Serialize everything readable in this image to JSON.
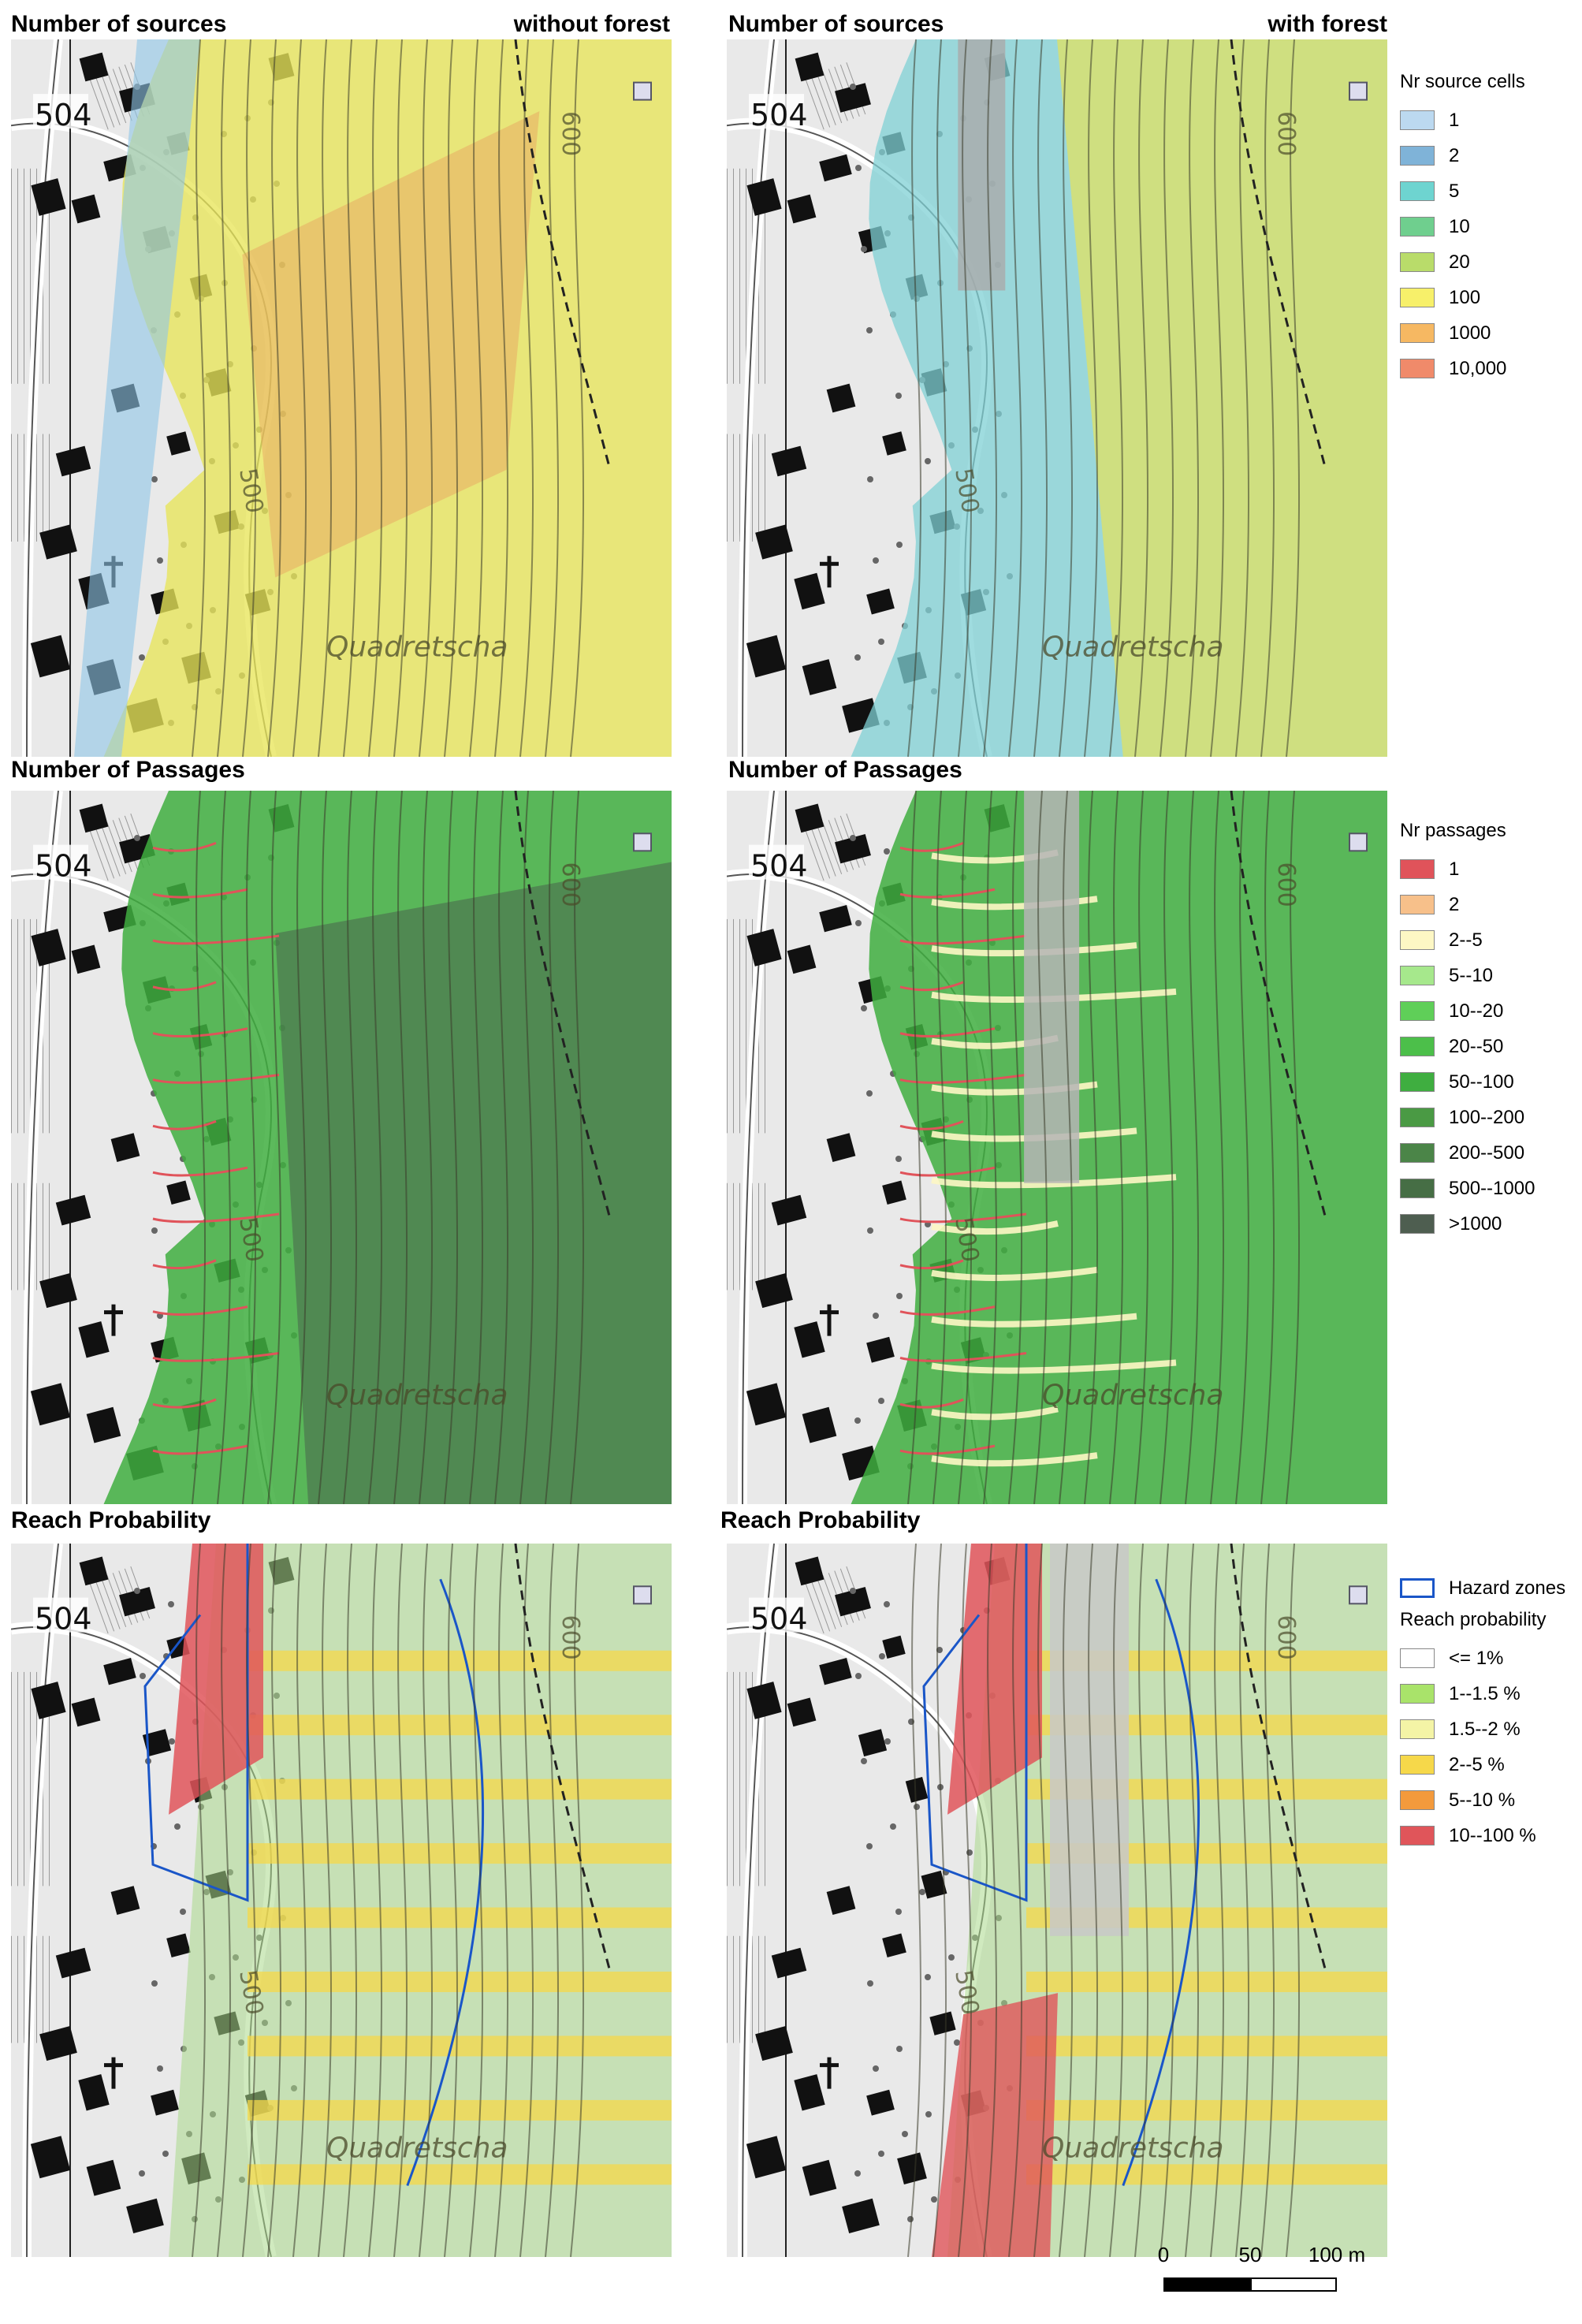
{
  "titles": {
    "row1_left": "Number of sources",
    "row1_left_sub": "without forest",
    "row1_right": "Number of sources",
    "row1_right_sub": "with forest",
    "row2_left": "Number of Passages",
    "row2_right": "Number of Passages",
    "row3_left": "Reach Probability",
    "row3_right": "Reach Probability"
  },
  "map_labels": {
    "elevation_504": "504",
    "contour_500": "500",
    "contour_600": "600",
    "place_name": "Quadretscha"
  },
  "legend_sources": {
    "title": "Nr source cells",
    "items": [
      {
        "label": "1",
        "color": "#bcd9f0"
      },
      {
        "label": "2",
        "color": "#7fb3d8"
      },
      {
        "label": "5",
        "color": "#6ed4d0"
      },
      {
        "label": "10",
        "color": "#6fcf8e"
      },
      {
        "label": "20",
        "color": "#b9dc6a"
      },
      {
        "label": "100",
        "color": "#f7f06a"
      },
      {
        "label": "1000",
        "color": "#f6b862"
      },
      {
        "label": "10,000",
        "color": "#f08a6a"
      }
    ]
  },
  "legend_passages": {
    "title": "Nr passages",
    "items": [
      {
        "label": "1",
        "color": "#e0535a"
      },
      {
        "label": "2",
        "color": "#f7c08a"
      },
      {
        "label": "2--5",
        "color": "#fdf7c4"
      },
      {
        "label": "5--10",
        "color": "#a6e88c"
      },
      {
        "label": "10--20",
        "color": "#5fcf58"
      },
      {
        "label": "20--50",
        "color": "#4cbf4a"
      },
      {
        "label": "50--100",
        "color": "#3fae40"
      },
      {
        "label": "100--200",
        "color": "#4a9a44"
      },
      {
        "label": "200--500",
        "color": "#4b8548"
      },
      {
        "label": "500--1000",
        "color": "#466e45"
      },
      {
        "label": ">1000",
        "color": "#4e5e50"
      }
    ]
  },
  "legend_reach": {
    "hazard_label": "Hazard zones",
    "hazard_color": "#1a56c8",
    "title": "Reach probability",
    "items": [
      {
        "label": "<= 1%",
        "color": "#ffffff"
      },
      {
        "label": "1--1.5 %",
        "color": "#a9e36a"
      },
      {
        "label": "1.5--2 %",
        "color": "#f4f4a6"
      },
      {
        "label": "2--5 %",
        "color": "#f6d84a"
      },
      {
        "label": "5--10 %",
        "color": "#f39a3c"
      },
      {
        "label": "10--100 %",
        "color": "#e0555a"
      }
    ]
  },
  "scale_bar": {
    "tick_0": "0",
    "tick_50": "50",
    "tick_100": "100 m"
  }
}
